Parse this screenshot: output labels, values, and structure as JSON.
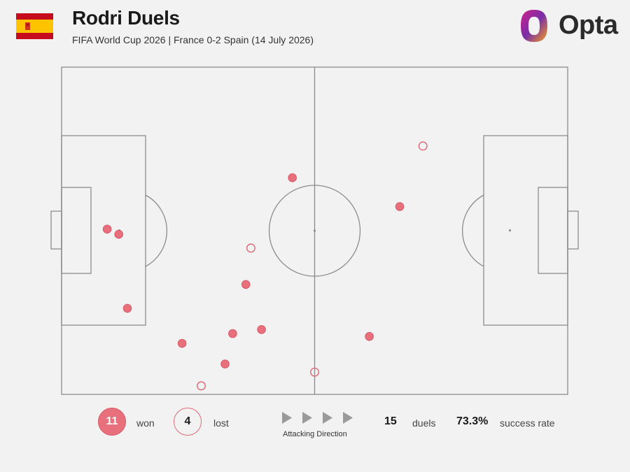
{
  "header": {
    "title": "Rodri Duels",
    "subtitle": "FIFA World Cup 2026 | France 0-2 Spain (14 July 2026)",
    "logo_text": "Opta",
    "flag": "spain-flag-icon"
  },
  "colors": {
    "won_fill": "#e8707c",
    "won_stroke": "#d9596a",
    "lost_stroke": "#e06a78",
    "pitch_line": "#8c8c8c",
    "background": "#f2f2f2"
  },
  "legend": {
    "won_count": "11",
    "won_label": "won",
    "lost_count": "4",
    "lost_label": "lost",
    "attack_label": "Attacking Direction",
    "duels_count": "15",
    "duels_label": "duels",
    "success_rate": "73.3%",
    "success_label": "success rate"
  },
  "chart_data": {
    "type": "scatter",
    "title": "Rodri Duels",
    "pitch": {
      "length": 100,
      "width": 100,
      "attacking_direction": "left-to-right"
    },
    "series": [
      {
        "name": "won",
        "points": [
          [
            9,
            50.5
          ],
          [
            11.3,
            48.9
          ],
          [
            13,
            26.3
          ],
          [
            23.8,
            15.6
          ],
          [
            32.3,
            9.3
          ],
          [
            33.8,
            18.6
          ],
          [
            36.4,
            33.6
          ],
          [
            39.5,
            19.8
          ],
          [
            45.6,
            66.2
          ],
          [
            60.8,
            17.7
          ],
          [
            66.8,
            57.4
          ]
        ]
      },
      {
        "name": "lost",
        "points": [
          [
            27.6,
            2.6
          ],
          [
            37.4,
            44.7
          ],
          [
            50,
            6.8
          ],
          [
            71.4,
            75.9
          ]
        ]
      }
    ]
  }
}
